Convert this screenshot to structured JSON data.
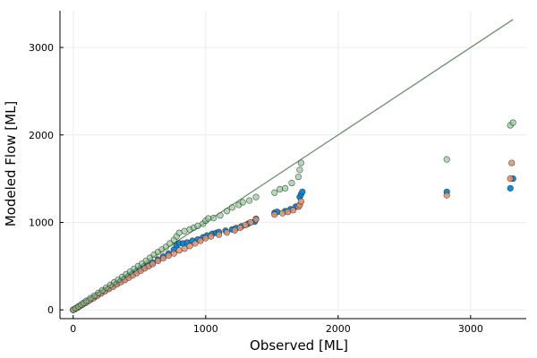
{
  "chart_data": {
    "type": "scatter",
    "xlabel": "Observed [ML]",
    "ylabel": "Modeled Flow [ML]",
    "xlim": [
      -100,
      3420
    ],
    "ylim": [
      -100,
      3420
    ],
    "x_ticks": [
      0,
      1000,
      2000,
      3000
    ],
    "y_ticks": [
      0,
      1000,
      2000,
      3000
    ],
    "x_tick_labels": [
      "0",
      "1000",
      "2000",
      "3000"
    ],
    "y_tick_labels": [
      "0",
      "1000",
      "2000",
      "3000"
    ],
    "grid": true,
    "legend": "none",
    "colors": {
      "series_blue": "#0a84d0",
      "series_orange": "#e0916f",
      "series_green": "#7fbf86",
      "one_to_one_line": "#6e8e6e",
      "marker_edge": "#2a2a2a",
      "grid": "#ececec",
      "axis": "#000000"
    },
    "series": [
      {
        "color_key": "series_blue",
        "opacity": 0.95,
        "points": [
          [
            0,
            0
          ],
          [
            10,
            8
          ],
          [
            20,
            17
          ],
          [
            35,
            30
          ],
          [
            50,
            45
          ],
          [
            70,
            62
          ],
          [
            90,
            80
          ],
          [
            110,
            100
          ],
          [
            135,
            122
          ],
          [
            160,
            145
          ],
          [
            185,
            170
          ],
          [
            210,
            195
          ],
          [
            240,
            222
          ],
          [
            270,
            250
          ],
          [
            300,
            278
          ],
          [
            330,
            305
          ],
          [
            360,
            335
          ],
          [
            390,
            362
          ],
          [
            420,
            390
          ],
          [
            450,
            418
          ],
          [
            480,
            445
          ],
          [
            510,
            470
          ],
          [
            540,
            495
          ],
          [
            570,
            515
          ],
          [
            600,
            540
          ],
          [
            640,
            575
          ],
          [
            680,
            610
          ],
          [
            720,
            645
          ],
          [
            760,
            690
          ],
          [
            780,
            740
          ],
          [
            800,
            760
          ],
          [
            830,
            760
          ],
          [
            860,
            770
          ],
          [
            900,
            790
          ],
          [
            940,
            805
          ],
          [
            980,
            830
          ],
          [
            1010,
            850
          ],
          [
            1050,
            870
          ],
          [
            1080,
            880
          ],
          [
            1100,
            890
          ],
          [
            1150,
            905
          ],
          [
            1200,
            920
          ],
          [
            1230,
            935
          ],
          [
            1270,
            955
          ],
          [
            1320,
            985
          ],
          [
            1370,
            1010
          ],
          [
            1380,
            1040
          ],
          [
            1520,
            1110
          ],
          [
            1540,
            1120
          ],
          [
            1600,
            1130
          ],
          [
            1640,
            1150
          ],
          [
            1680,
            1180
          ],
          [
            1710,
            1290
          ],
          [
            1720,
            1320
          ],
          [
            1730,
            1350
          ],
          [
            2820,
            1350
          ],
          [
            3300,
            1390
          ],
          [
            3320,
            1500
          ]
        ]
      },
      {
        "color_key": "series_orange",
        "opacity": 0.85,
        "points": [
          [
            0,
            0
          ],
          [
            15,
            12
          ],
          [
            30,
            25
          ],
          [
            50,
            42
          ],
          [
            70,
            60
          ],
          [
            95,
            82
          ],
          [
            120,
            105
          ],
          [
            150,
            132
          ],
          [
            180,
            160
          ],
          [
            210,
            187
          ],
          [
            240,
            214
          ],
          [
            270,
            240
          ],
          [
            300,
            265
          ],
          [
            330,
            292
          ],
          [
            360,
            318
          ],
          [
            390,
            342
          ],
          [
            420,
            368
          ],
          [
            450,
            395
          ],
          [
            480,
            420
          ],
          [
            510,
            448
          ],
          [
            540,
            475
          ],
          [
            570,
            500
          ],
          [
            600,
            525
          ],
          [
            640,
            560
          ],
          [
            680,
            590
          ],
          [
            720,
            620
          ],
          [
            760,
            645
          ],
          [
            800,
            680
          ],
          [
            840,
            700
          ],
          [
            880,
            730
          ],
          [
            920,
            760
          ],
          [
            960,
            790
          ],
          [
            1000,
            820
          ],
          [
            1040,
            840
          ],
          [
            1100,
            860
          ],
          [
            1160,
            885
          ],
          [
            1220,
            910
          ],
          [
            1260,
            940
          ],
          [
            1300,
            970
          ],
          [
            1340,
            1000
          ],
          [
            1380,
            1035
          ],
          [
            1520,
            1090
          ],
          [
            1580,
            1105
          ],
          [
            1620,
            1120
          ],
          [
            1660,
            1140
          ],
          [
            1700,
            1180
          ],
          [
            1710,
            1200
          ],
          [
            1720,
            1240
          ],
          [
            2820,
            1310
          ],
          [
            3300,
            1500
          ],
          [
            3310,
            1680
          ]
        ]
      },
      {
        "color_key": "series_green",
        "opacity": 0.6,
        "points": [
          [
            0,
            0
          ],
          [
            20,
            20
          ],
          [
            40,
            40
          ],
          [
            60,
            62
          ],
          [
            80,
            82
          ],
          [
            100,
            104
          ],
          [
            130,
            134
          ],
          [
            160,
            163
          ],
          [
            190,
            194
          ],
          [
            220,
            224
          ],
          [
            250,
            255
          ],
          [
            280,
            285
          ],
          [
            310,
            316
          ],
          [
            340,
            346
          ],
          [
            370,
            377
          ],
          [
            400,
            408
          ],
          [
            430,
            438
          ],
          [
            460,
            470
          ],
          [
            490,
            500
          ],
          [
            520,
            530
          ],
          [
            550,
            562
          ],
          [
            580,
            595
          ],
          [
            610,
            630
          ],
          [
            640,
            660
          ],
          [
            670,
            690
          ],
          [
            700,
            720
          ],
          [
            730,
            760
          ],
          [
            760,
            800
          ],
          [
            780,
            840
          ],
          [
            800,
            880
          ],
          [
            840,
            900
          ],
          [
            880,
            920
          ],
          [
            910,
            940
          ],
          [
            940,
            960
          ],
          [
            980,
            985
          ],
          [
            1000,
            1020
          ],
          [
            1020,
            1045
          ],
          [
            1060,
            1050
          ],
          [
            1110,
            1080
          ],
          [
            1160,
            1130
          ],
          [
            1200,
            1170
          ],
          [
            1250,
            1200
          ],
          [
            1280,
            1230
          ],
          [
            1330,
            1250
          ],
          [
            1380,
            1290
          ],
          [
            1520,
            1340
          ],
          [
            1560,
            1380
          ],
          [
            1600,
            1390
          ],
          [
            1650,
            1450
          ],
          [
            1700,
            1520
          ],
          [
            1710,
            1600
          ],
          [
            1720,
            1680
          ],
          [
            2820,
            1720
          ],
          [
            3300,
            2110
          ],
          [
            3320,
            2140
          ]
        ]
      }
    ],
    "reference_line": {
      "color_key": "one_to_one_line",
      "points": [
        [
          0,
          0
        ],
        [
          3320,
          3320
        ]
      ]
    }
  }
}
